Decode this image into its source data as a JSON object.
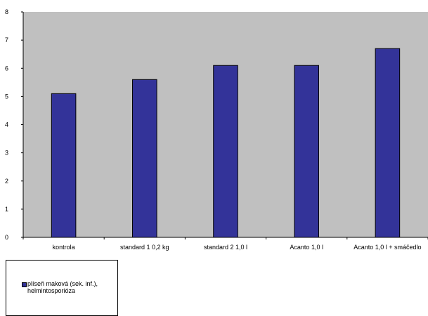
{
  "colors": {
    "bar": "#333399",
    "plot_background": "#c0c0c0",
    "axis": "#000000"
  },
  "legend": {
    "label": "plíseň maková (sek. inf.),\nhelmintosporióza"
  },
  "chart_data": {
    "type": "bar",
    "categories": [
      "kontrola",
      "standard 1 0,2 kg",
      "standard 2 1,0 l",
      "Acanto 1,0 l",
      "Acanto 1,0 l + smáčedlo"
    ],
    "series": [
      {
        "name": "plíseň maková (sek. inf.), helmintosporióza",
        "values": [
          5.1,
          5.6,
          6.1,
          6.1,
          6.7
        ]
      }
    ],
    "ylim": [
      0,
      8
    ],
    "yticks": [
      0,
      1,
      2,
      3,
      4,
      5,
      6,
      7,
      8
    ],
    "title": "",
    "xlabel": "",
    "ylabel": "",
    "grid": false,
    "legend_position": "bottom-left"
  }
}
